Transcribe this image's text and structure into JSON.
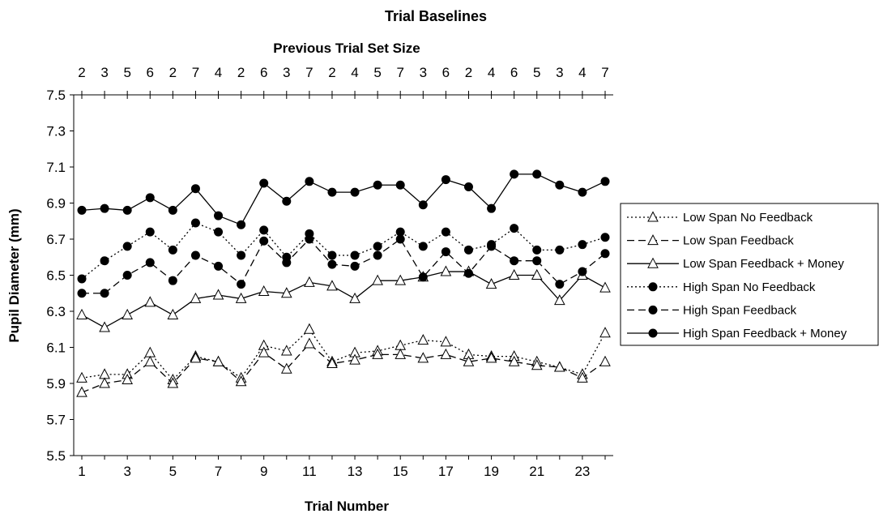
{
  "chart_data": {
    "type": "line",
    "title": "Trial Baselines",
    "top_axis_label": "Previous Trial Set Size",
    "top_tick_labels": [
      "2",
      "3",
      "5",
      "6",
      "2",
      "7",
      "4",
      "2",
      "6",
      "3",
      "7",
      "2",
      "4",
      "5",
      "7",
      "3",
      "6",
      "2",
      "4",
      "6",
      "5",
      "3",
      "4",
      "7"
    ],
    "xlabel": "Trial Number",
    "ylabel": "Pupil Diameter (mm)",
    "x": [
      1,
      2,
      3,
      4,
      5,
      6,
      7,
      8,
      9,
      10,
      11,
      12,
      13,
      14,
      15,
      16,
      17,
      18,
      19,
      20,
      21,
      22,
      23,
      24
    ],
    "x_tick_labels": [
      "1",
      "3",
      "5",
      "7",
      "9",
      "11",
      "13",
      "15",
      "17",
      "19",
      "21",
      "23"
    ],
    "ylim": [
      5.5,
      7.5
    ],
    "y_ticks": [
      "5.5",
      "5.7",
      "5.9",
      "6.1",
      "6.3",
      "6.5",
      "6.7",
      "6.9",
      "7.1",
      "7.3",
      "7.5"
    ],
    "grid": false,
    "legend_position": "right",
    "series": [
      {
        "name": "Low Span No Feedback",
        "marker": "triangle",
        "line": "dotted",
        "values": [
          5.93,
          5.95,
          5.95,
          6.07,
          5.92,
          6.05,
          6.02,
          5.93,
          6.11,
          6.08,
          6.2,
          6.02,
          6.07,
          6.08,
          6.11,
          6.14,
          6.13,
          6.06,
          6.05,
          6.05,
          6.02,
          5.99,
          5.95,
          6.18
        ]
      },
      {
        "name": "Low Span Feedback",
        "marker": "triangle",
        "line": "dashed",
        "values": [
          5.85,
          5.9,
          5.92,
          6.02,
          5.9,
          6.04,
          6.02,
          5.91,
          6.07,
          5.98,
          6.12,
          6.01,
          6.03,
          6.06,
          6.06,
          6.04,
          6.06,
          6.02,
          6.04,
          6.02,
          6.0,
          5.99,
          5.93,
          6.02
        ]
      },
      {
        "name": "Low Span Feedback + Money",
        "marker": "triangle",
        "line": "solid",
        "values": [
          6.28,
          6.21,
          6.28,
          6.35,
          6.28,
          6.37,
          6.39,
          6.37,
          6.41,
          6.4,
          6.46,
          6.44,
          6.37,
          6.47,
          6.47,
          6.49,
          6.52,
          6.52,
          6.45,
          6.5,
          6.5,
          6.36,
          6.5,
          6.43
        ]
      },
      {
        "name": "High Span No Feedback",
        "marker": "circle",
        "line": "dotted",
        "values": [
          6.48,
          6.58,
          6.66,
          6.74,
          6.64,
          6.79,
          6.74,
          6.61,
          6.75,
          6.6,
          6.73,
          6.61,
          6.61,
          6.66,
          6.74,
          6.66,
          6.74,
          6.64,
          6.67,
          6.76,
          6.64,
          6.64,
          6.67,
          6.71
        ]
      },
      {
        "name": "High Span Feedback",
        "marker": "circle",
        "line": "dashed",
        "values": [
          6.4,
          6.4,
          6.5,
          6.57,
          6.47,
          6.61,
          6.55,
          6.45,
          6.69,
          6.57,
          6.7,
          6.56,
          6.55,
          6.61,
          6.7,
          6.49,
          6.63,
          6.51,
          6.66,
          6.58,
          6.58,
          6.45,
          6.52,
          6.62
        ]
      },
      {
        "name": "High Span Feedback + Money",
        "marker": "circle",
        "line": "solid",
        "values": [
          6.86,
          6.87,
          6.86,
          6.93,
          6.86,
          6.98,
          6.83,
          6.78,
          7.01,
          6.91,
          7.02,
          6.96,
          6.96,
          7.0,
          7.0,
          6.89,
          7.03,
          6.99,
          6.87,
          7.06,
          7.06,
          7.0,
          6.96,
          7.02
        ]
      }
    ]
  }
}
